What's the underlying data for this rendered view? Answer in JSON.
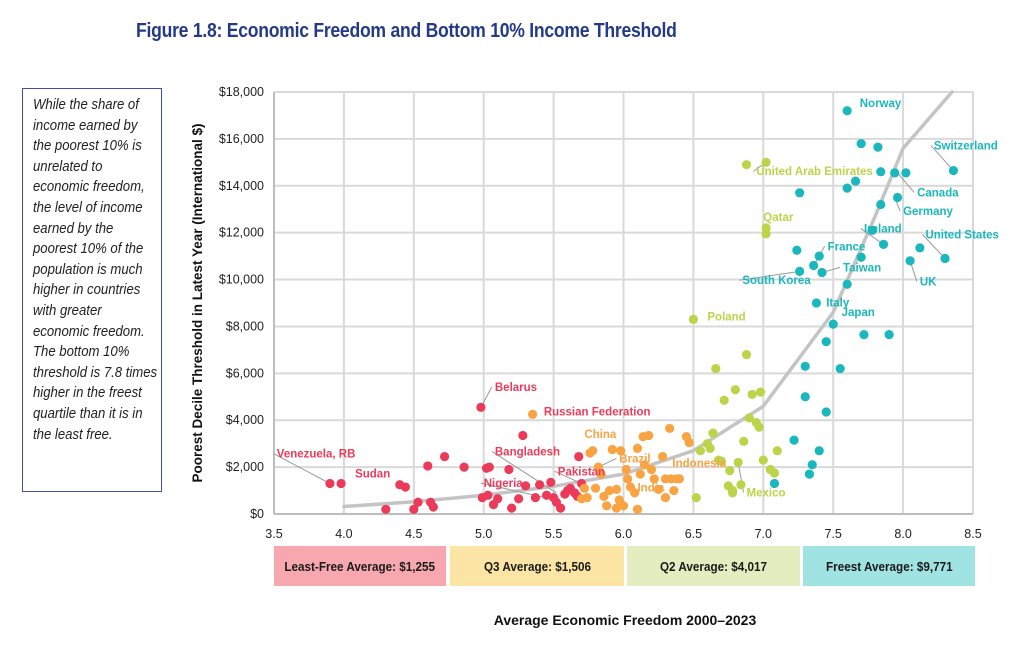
{
  "title": "Figure 1.8: Economic Freedom and Bottom 10% Income Threshold",
  "sidebar_text": "While the share of income earned by the poorest 10% is unrelated to economic freedom, the level of income earned by the poorest 10% of the population is much higher in countries with greater economic freedom. The bottom 10% threshold is 7.8 times higher in the freest quartile than it is in the least free.",
  "quartile_boxes": [
    {
      "label": "Least-Free Average: $1,255",
      "color": "#f7a8ae"
    },
    {
      "label": "Q3 Average: $1,506",
      "color": "#fce5a4"
    },
    {
      "label": "Q2 Average: $4,017",
      "color": "#e3edbf"
    },
    {
      "label": "Freest Average: $9,771",
      "color": "#9fe3e2"
    }
  ],
  "chart_data": {
    "type": "scatter",
    "title": "Figure 1.8: Economic Freedom and Bottom 10% Income Threshold",
    "xlabel": "Average Economic Freedom 2000–2023",
    "ylabel": "Poorest Decile Threshold in Latest Year (International $)",
    "xlim": [
      3.5,
      8.5
    ],
    "ylim": [
      0,
      18000
    ],
    "xticks": [
      "3.5",
      "4.0",
      "4.5",
      "5.0",
      "5.5",
      "6.0",
      "6.5",
      "7.0",
      "7.5",
      "8.0",
      "8.5"
    ],
    "yticks": [
      "$0",
      "$2,000",
      "$4,000",
      "$6,000",
      "$8,000",
      "$10,000",
      "$12,000",
      "$14,000",
      "$16,000",
      "$18,000"
    ],
    "ytick_values": [
      0,
      2000,
      4000,
      6000,
      8000,
      10000,
      12000,
      14000,
      16000,
      18000
    ],
    "grid": true,
    "trendline": {
      "type": "exponential",
      "color": "#c4c4c4",
      "x": [
        4.0,
        8.35
      ],
      "points": [
        [
          4.0,
          320
        ],
        [
          4.5,
          520
        ],
        [
          5.0,
          800
        ],
        [
          5.5,
          1180
        ],
        [
          6.0,
          1700
        ],
        [
          6.5,
          2700
        ],
        [
          7.0,
          4600
        ],
        [
          7.5,
          8600
        ],
        [
          7.8,
          12700
        ],
        [
          8.0,
          15600
        ],
        [
          8.35,
          18000
        ]
      ]
    },
    "series": [
      {
        "name": "Least Free",
        "color": "#ec3b5a",
        "points": [
          [
            3.9,
            1300
          ],
          [
            3.98,
            1300
          ],
          [
            4.3,
            200
          ],
          [
            4.4,
            1250
          ],
          [
            4.44,
            1150
          ],
          [
            4.5,
            200
          ],
          [
            4.53,
            500
          ],
          [
            4.6,
            2050
          ],
          [
            4.62,
            500
          ],
          [
            4.64,
            300
          ],
          [
            4.72,
            2450
          ],
          [
            4.86,
            2000
          ],
          [
            4.98,
            4550
          ],
          [
            4.99,
            700
          ],
          [
            5.02,
            1950
          ],
          [
            5.03,
            800
          ],
          [
            5.04,
            2000
          ],
          [
            5.07,
            400
          ],
          [
            5.1,
            650
          ],
          [
            5.18,
            1900
          ],
          [
            5.2,
            250
          ],
          [
            5.25,
            650
          ],
          [
            5.28,
            3350
          ],
          [
            5.3,
            1200
          ],
          [
            5.37,
            700
          ],
          [
            5.4,
            1250
          ],
          [
            5.45,
            800
          ],
          [
            5.48,
            1350
          ],
          [
            5.5,
            700
          ],
          [
            5.52,
            500
          ],
          [
            5.55,
            250
          ],
          [
            5.58,
            850
          ],
          [
            5.6,
            1000
          ],
          [
            5.62,
            1100
          ],
          [
            5.65,
            900
          ],
          [
            5.67,
            750
          ],
          [
            5.68,
            2450
          ],
          [
            5.7,
            1300
          ]
        ]
      },
      {
        "name": "Q3",
        "color": "#f9a343",
        "points": [
          [
            5.35,
            4250
          ],
          [
            5.7,
            650
          ],
          [
            5.72,
            1100
          ],
          [
            5.74,
            700
          ],
          [
            5.76,
            2600
          ],
          [
            5.78,
            2700
          ],
          [
            5.8,
            1100
          ],
          [
            5.82,
            2000
          ],
          [
            5.84,
            1700
          ],
          [
            5.86,
            750
          ],
          [
            5.88,
            350
          ],
          [
            5.9,
            1000
          ],
          [
            5.92,
            2750
          ],
          [
            5.95,
            1050
          ],
          [
            5.97,
            600
          ],
          [
            5.98,
            2700
          ],
          [
            6.0,
            350
          ],
          [
            6.02,
            1900
          ],
          [
            6.03,
            1500
          ],
          [
            6.05,
            1150
          ],
          [
            6.08,
            900
          ],
          [
            6.1,
            2800
          ],
          [
            6.12,
            1700
          ],
          [
            6.14,
            3300
          ],
          [
            6.15,
            2100
          ],
          [
            6.18,
            3350
          ],
          [
            6.2,
            1900
          ],
          [
            6.22,
            1500
          ],
          [
            6.25,
            1050
          ],
          [
            6.28,
            2450
          ],
          [
            6.3,
            700
          ],
          [
            6.3,
            1500
          ],
          [
            6.33,
            3650
          ],
          [
            6.34,
            1500
          ],
          [
            6.36,
            1000
          ],
          [
            6.38,
            1500
          ],
          [
            6.4,
            1500
          ],
          [
            6.45,
            3300
          ],
          [
            6.47,
            3050
          ],
          [
            6.1,
            200
          ],
          [
            5.95,
            250
          ]
        ]
      },
      {
        "name": "Q2",
        "color": "#bcd44a",
        "points": [
          [
            6.5,
            8300
          ],
          [
            6.52,
            700
          ],
          [
            6.55,
            2700
          ],
          [
            6.6,
            3000
          ],
          [
            6.62,
            2800
          ],
          [
            6.64,
            3450
          ],
          [
            6.66,
            6200
          ],
          [
            6.68,
            2300
          ],
          [
            6.7,
            2250
          ],
          [
            6.72,
            4850
          ],
          [
            6.75,
            1200
          ],
          [
            6.76,
            1850
          ],
          [
            6.78,
            900
          ],
          [
            6.8,
            5300
          ],
          [
            6.82,
            2200
          ],
          [
            6.84,
            1250
          ],
          [
            6.86,
            3100
          ],
          [
            6.88,
            14900
          ],
          [
            6.88,
            6800
          ],
          [
            6.9,
            4100
          ],
          [
            6.92,
            5100
          ],
          [
            6.95,
            3900
          ],
          [
            6.97,
            3700
          ],
          [
            6.98,
            5200
          ],
          [
            7.0,
            2300
          ],
          [
            7.02,
            15000
          ],
          [
            7.02,
            12200
          ],
          [
            7.02,
            11950
          ],
          [
            7.05,
            1900
          ],
          [
            7.08,
            1750
          ],
          [
            7.1,
            2700
          ],
          [
            6.78,
            1000
          ]
        ]
      },
      {
        "name": "Freest",
        "color": "#1ab7bd",
        "points": [
          [
            7.08,
            1300
          ],
          [
            7.22,
            3150
          ],
          [
            7.24,
            11250
          ],
          [
            7.26,
            13700
          ],
          [
            7.26,
            10350
          ],
          [
            7.3,
            6300
          ],
          [
            7.3,
            5000
          ],
          [
            7.33,
            1700
          ],
          [
            7.35,
            2100
          ],
          [
            7.36,
            10600
          ],
          [
            7.38,
            9000
          ],
          [
            7.4,
            2700
          ],
          [
            7.4,
            11000
          ],
          [
            7.42,
            10300
          ],
          [
            7.45,
            4350
          ],
          [
            7.45,
            7350
          ],
          [
            7.5,
            8100
          ],
          [
            7.55,
            6200
          ],
          [
            7.6,
            17200
          ],
          [
            7.6,
            13900
          ],
          [
            7.6,
            9800
          ],
          [
            7.66,
            14200
          ],
          [
            7.7,
            15800
          ],
          [
            7.7,
            10950
          ],
          [
            7.72,
            7650
          ],
          [
            7.78,
            12100
          ],
          [
            7.82,
            15650
          ],
          [
            7.84,
            14600
          ],
          [
            7.84,
            13200
          ],
          [
            7.86,
            11500
          ],
          [
            7.9,
            7650
          ],
          [
            7.94,
            14550
          ],
          [
            7.96,
            13500
          ],
          [
            8.02,
            14550
          ],
          [
            8.05,
            10800
          ],
          [
            8.12,
            11350
          ],
          [
            8.3,
            10900
          ],
          [
            8.36,
            14650
          ]
        ]
      }
    ],
    "labels": [
      {
        "text": "Venezuela, RB",
        "series": "Least Free",
        "point": [
          3.9,
          1300
        ],
        "text_at": [
          3.52,
          2400
        ]
      },
      {
        "text": "Sudan",
        "series": "Least Free",
        "point": [
          3.98,
          1300
        ],
        "text_at": [
          4.08,
          1550
        ]
      },
      {
        "text": "Belarus",
        "series": "Least Free",
        "point": [
          4.98,
          4550
        ],
        "text_at": [
          5.08,
          5250
        ]
      },
      {
        "text": "Russian Federation",
        "series": "Least Free",
        "point": [
          5.35,
          4250
        ],
        "text_at": [
          5.43,
          4200
        ]
      },
      {
        "text": "Bangladesh",
        "series": "Least Free",
        "point": [
          5.52,
          900
        ],
        "text_at": [
          5.08,
          2500
        ]
      },
      {
        "text": "Nigeria",
        "series": "Least Free",
        "point": [
          5.55,
          550
        ],
        "text_at": [
          5.0,
          1150
        ]
      },
      {
        "text": "Pakistan",
        "series": "Least Free",
        "point": [
          5.7,
          1300
        ],
        "text_at": [
          5.53,
          1650
        ]
      },
      {
        "text": "China",
        "series": "Q3",
        "point": [
          5.78,
          2700
        ],
        "text_at": [
          5.72,
          3250
        ]
      },
      {
        "text": "Brazil",
        "series": "Q3",
        "point": [
          5.82,
          2000
        ],
        "text_at": [
          5.97,
          2200
        ]
      },
      {
        "text": "Indonesia",
        "series": "Q3",
        "point": [
          6.38,
          1500
        ],
        "text_at": [
          6.35,
          2000
        ]
      },
      {
        "text": "India",
        "series": "Q3",
        "point": [
          6.03,
          1500
        ],
        "text_at": [
          6.1,
          950
        ]
      },
      {
        "text": "Poland",
        "series": "Q2",
        "point": [
          6.5,
          8300
        ],
        "text_at": [
          6.6,
          8250
        ]
      },
      {
        "text": "United Arab Emirates",
        "series": "Q2",
        "point": [
          7.02,
          15000
        ],
        "text_at": [
          6.95,
          14450
        ]
      },
      {
        "text": "Qatar",
        "series": "Q2",
        "point": [
          7.02,
          12200
        ],
        "text_at": [
          7.0,
          12500
        ]
      },
      {
        "text": "Mexico",
        "series": "Q2",
        "point": [
          6.82,
          2200
        ],
        "text_at": [
          6.88,
          750
        ]
      },
      {
        "text": "Norway",
        "series": "Freest",
        "point": [
          7.6,
          17200
        ],
        "text_at": [
          7.69,
          17350
        ]
      },
      {
        "text": "Switzerland",
        "series": "Freest",
        "point": [
          8.36,
          14650
        ],
        "text_at": [
          8.22,
          15550
        ]
      },
      {
        "text": "Canada",
        "series": "Freest",
        "point": [
          7.96,
          14550
        ],
        "text_at": [
          8.1,
          13550
        ]
      },
      {
        "text": "Germany",
        "series": "Freest",
        "point": [
          7.94,
          13500
        ],
        "text_at": [
          8.0,
          12750
        ]
      },
      {
        "text": "Ireland",
        "series": "Freest",
        "point": [
          7.86,
          11500
        ],
        "text_at": [
          7.72,
          12000
        ]
      },
      {
        "text": "France",
        "series": "Freest",
        "point": [
          7.36,
          10600
        ],
        "text_at": [
          7.46,
          11250
        ]
      },
      {
        "text": "United States",
        "series": "Freest",
        "point": [
          8.3,
          10900
        ],
        "text_at": [
          8.16,
          11750
        ]
      },
      {
        "text": "South Korea",
        "series": "Freest",
        "point": [
          7.26,
          10350
        ],
        "text_at": [
          6.85,
          9800
        ]
      },
      {
        "text": "Taiwan",
        "series": "Freest",
        "point": [
          7.42,
          10300
        ],
        "text_at": [
          7.57,
          10350
        ]
      },
      {
        "text": "UK",
        "series": "Freest",
        "point": [
          8.05,
          10800
        ],
        "text_at": [
          8.12,
          9750
        ]
      },
      {
        "text": "Italy",
        "series": "Freest",
        "point": [
          7.38,
          9000
        ],
        "text_at": [
          7.45,
          8850
        ]
      },
      {
        "text": "Japan",
        "series": "Freest",
        "point": [
          7.5,
          8100
        ],
        "text_at": [
          7.56,
          8450
        ]
      }
    ]
  }
}
